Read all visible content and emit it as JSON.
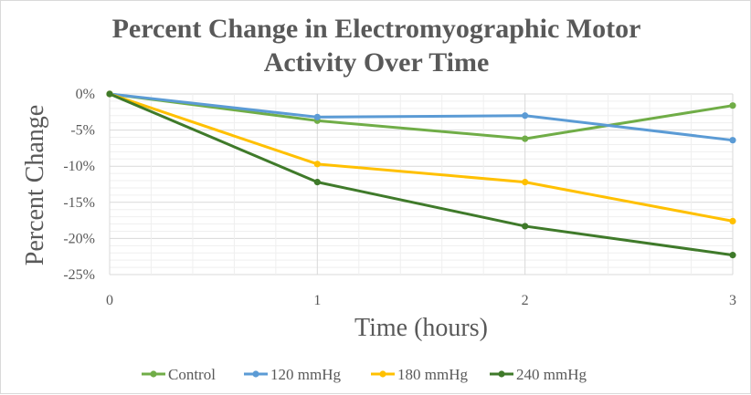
{
  "colors": {
    "control": "#70ad47",
    "mmhg120": "#5b9bd5",
    "mmhg180": "#ffc000",
    "mmhg240": "#3f7a2a",
    "grid_major": "#d9d9d9",
    "grid_minor": "#efefef",
    "text": "#595959"
  },
  "chart_data": {
    "type": "line",
    "title_lines": [
      "Percent Change in Electromyographic Motor",
      "Activity Over Time"
    ],
    "xlabel": "Time (hours)",
    "ylabel": "Percent Change",
    "x": [
      0,
      1,
      2,
      3
    ],
    "x_ticks": [
      "0",
      "1",
      "2",
      "3"
    ],
    "xlim": [
      0,
      3
    ],
    "ylim": [
      -25,
      0
    ],
    "y_ticks": [
      0,
      -5,
      -10,
      -15,
      -20,
      -25
    ],
    "y_tick_labels": [
      "0%",
      "-5%",
      "-10%",
      "-15%",
      "-20%",
      "-25%"
    ],
    "grid": true,
    "legend_position": "bottom",
    "series": [
      {
        "name": "Control",
        "color_key": "control",
        "values": [
          0,
          -3.7,
          -6.2,
          -1.6
        ]
      },
      {
        "name": "120 mmHg",
        "color_key": "mmhg120",
        "values": [
          0,
          -3.2,
          -3.0,
          -6.4
        ]
      },
      {
        "name": "180 mmHg",
        "color_key": "mmhg180",
        "values": [
          0,
          -9.7,
          -12.2,
          -17.6
        ]
      },
      {
        "name": "240 mmHg",
        "color_key": "mmhg240",
        "values": [
          0,
          -12.2,
          -18.3,
          -22.3
        ]
      }
    ]
  }
}
